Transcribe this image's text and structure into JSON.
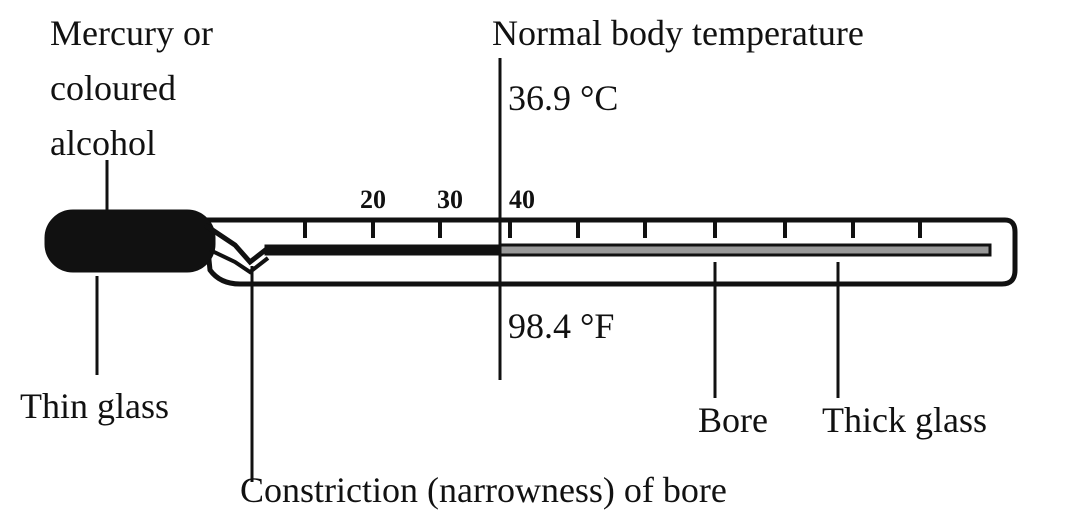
{
  "title": "Normal body temperature",
  "celsius_reading": "36.9 °C",
  "fahrenheit_reading": "98.4 °F",
  "scale_labels": [
    "20",
    "30",
    "40"
  ],
  "labels": {
    "liquid": [
      "Mercury or",
      "coloured",
      "alcohol"
    ],
    "thin_glass": "Thin glass",
    "constriction": "Constriction (narrowness) of bore",
    "bore": "Bore",
    "thick_glass": "Thick glass"
  }
}
